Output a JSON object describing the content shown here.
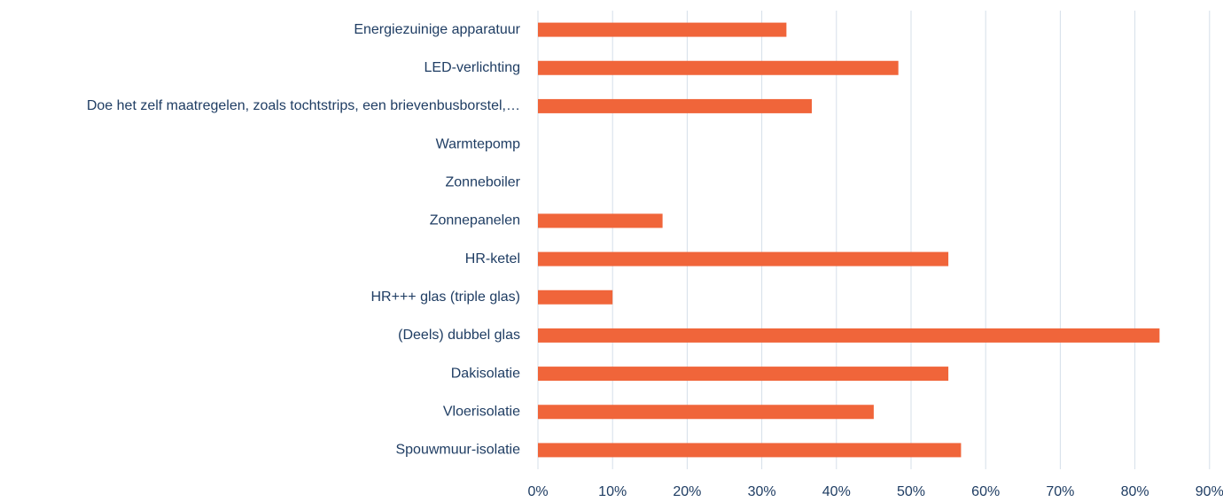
{
  "chart_data": {
    "type": "barh",
    "categories": [
      "Energiezuinige apparatuur",
      "LED-verlichting",
      "Doe het zelf maatregelen, zoals tochtstrips, een brievenbusborstel,…",
      "Warmtepomp",
      "Zonneboiler",
      "Zonnepanelen",
      "HR-ketel",
      "HR+++ glas (triple glas)",
      "(Deels) dubbel glas",
      "Dakisolatie",
      "Vloerisolatie",
      "Spouwmuur-isolatie"
    ],
    "values": [
      33.3,
      48.3,
      36.7,
      0,
      0,
      16.7,
      55,
      10,
      83.3,
      55,
      45,
      56.7
    ],
    "color": "#f0653a",
    "xlim": [
      0,
      90
    ],
    "xticks": [
      {
        "value": 0,
        "label": "0%"
      },
      {
        "value": 10,
        "label": "10%"
      },
      {
        "value": 20,
        "label": "20%"
      },
      {
        "value": 30,
        "label": "30%"
      },
      {
        "value": 40,
        "label": "40%"
      },
      {
        "value": 50,
        "label": "50%"
      },
      {
        "value": 60,
        "label": "60%"
      },
      {
        "value": 70,
        "label": "70%"
      },
      {
        "value": 80,
        "label": "80%"
      },
      {
        "value": 90,
        "label": "90%"
      }
    ],
    "grid": true
  }
}
